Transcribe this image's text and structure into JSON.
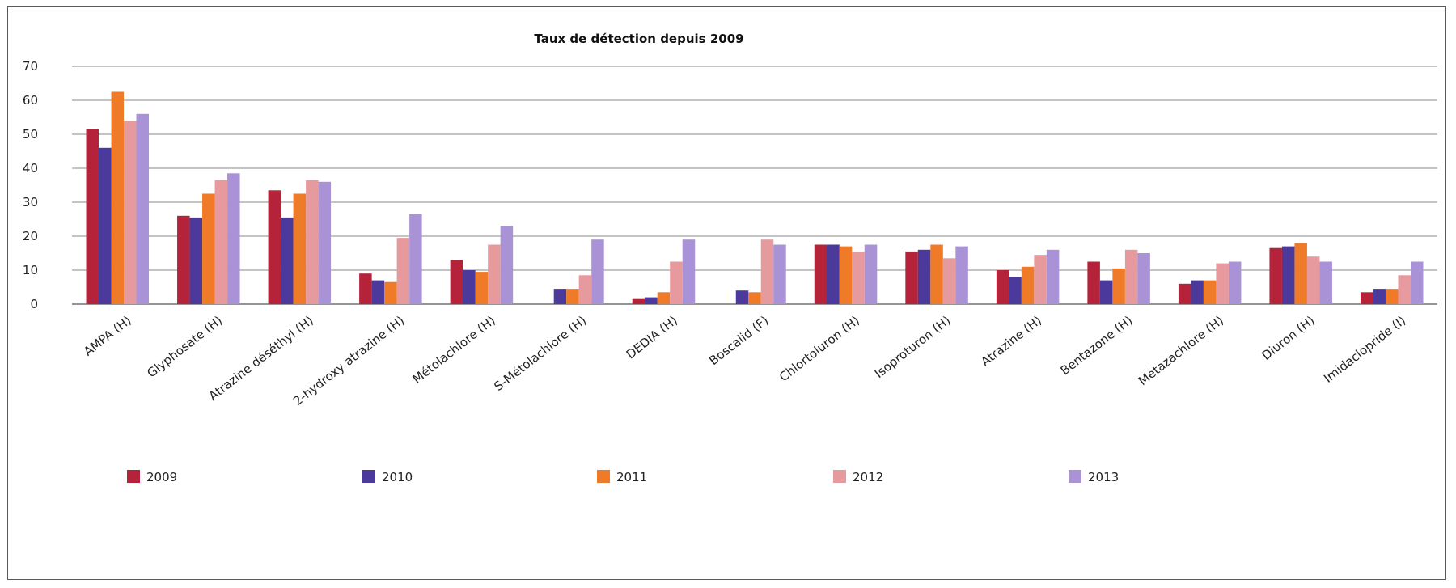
{
  "chart_data": {
    "type": "bar",
    "title": "Taux de détection depuis 2009",
    "xlabel": "",
    "ylabel": "",
    "ylim": [
      0,
      70
    ],
    "yticks": [
      0,
      10,
      20,
      30,
      40,
      50,
      60,
      70
    ],
    "grid": true,
    "legend_position": "bottom",
    "categories": [
      "AMPA (H)",
      "Glyphosate (H)",
      "Atrazine déséthyl (H)",
      "2-hydroxy atrazine (H)",
      "Métolachlore (H)",
      "S-Métolachlore (H)",
      "DEDIA (H)",
      "Boscalid (F)",
      "Chlortoluron (H)",
      "Isoproturon (H)",
      "Atrazine (H)",
      "Bentazone (H)",
      "Métazachlore (H)",
      "Diuron (H)",
      "Imidaclopride (I)"
    ],
    "series": [
      {
        "name": "2009",
        "color": "#b5233a",
        "values": [
          51.5,
          26,
          33.5,
          9,
          13,
          0,
          1.5,
          0,
          17.5,
          15.5,
          10,
          12.5,
          6,
          16.5,
          3.5
        ]
      },
      {
        "name": "2010",
        "color": "#4b3a9b",
        "values": [
          46,
          25.5,
          25.5,
          7,
          10,
          4.5,
          2,
          4,
          17.5,
          16,
          8,
          7,
          7,
          17,
          4.5
        ]
      },
      {
        "name": "2011",
        "color": "#ef7a28",
        "values": [
          62.5,
          32.5,
          32.5,
          6.5,
          9.5,
          4.5,
          3.5,
          3.5,
          17,
          17.5,
          11,
          10.5,
          7,
          18,
          4.5
        ]
      },
      {
        "name": "2012",
        "color": "#e79a9e",
        "values": [
          54,
          36.5,
          36.5,
          19.5,
          17.5,
          8.5,
          12.5,
          19,
          15.5,
          13.5,
          14.5,
          16,
          12,
          14,
          8.5
        ]
      },
      {
        "name": "2013",
        "color": "#a993d6",
        "values": [
          56,
          38.5,
          36,
          26.5,
          23,
          19,
          19,
          17.5,
          17.5,
          17,
          16,
          15,
          12.5,
          12.5,
          12.5
        ]
      }
    ]
  }
}
